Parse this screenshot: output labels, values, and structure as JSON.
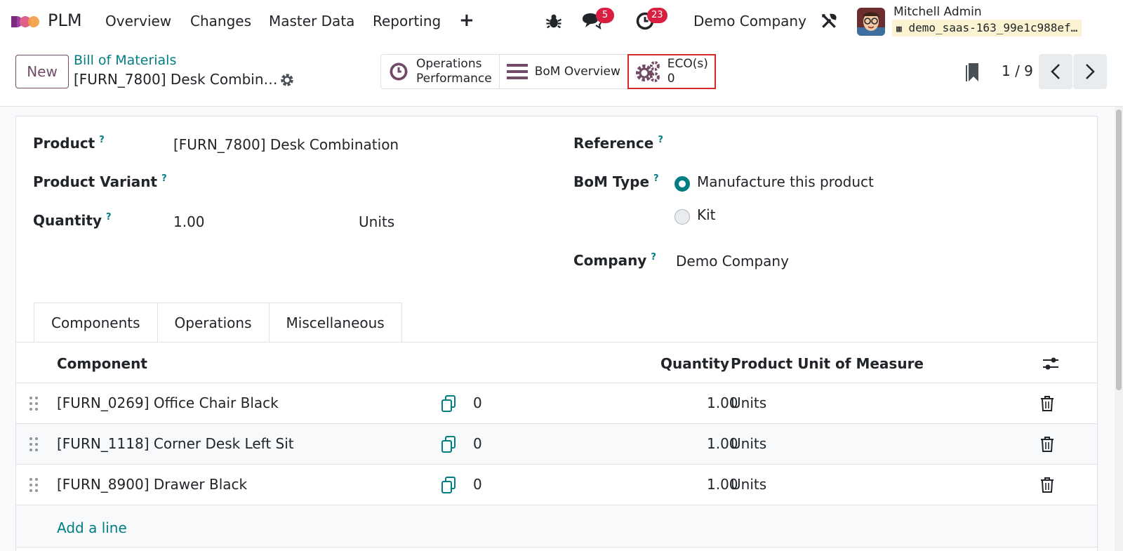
{
  "nav": {
    "app_name": "PLM",
    "menu": [
      "Overview",
      "Changes",
      "Master Data",
      "Reporting"
    ],
    "plus": "+",
    "messages_badge": "5",
    "activities_badge": "23",
    "company": "Demo Company",
    "user_name": "Mitchell Admin",
    "database": "demo_saas-163_99e1c988ef…"
  },
  "control": {
    "new_label": "New",
    "breadcrumb": "Bill of Materials",
    "record_title": "[FURN_7800] Desk Combin…",
    "smart_buttons": {
      "ops_line1": "Operations",
      "ops_line2": "Performance",
      "bom_overview": "BoM Overview",
      "eco_label": "ECO(s)",
      "eco_count": "0"
    },
    "pager": "1 / 9"
  },
  "form": {
    "product_label": "Product",
    "product_value": "[FURN_7800] Desk Combination",
    "variant_label": "Product Variant",
    "quantity_label": "Quantity",
    "quantity_value": "1.00",
    "quantity_uom": "Units",
    "reference_label": "Reference",
    "bom_type_label": "BoM Type",
    "bom_type_options": [
      "Manufacture this product",
      "Kit"
    ],
    "bom_type_selected": "Manufacture this product",
    "company_label": "Company",
    "company_value": "Demo Company",
    "help_mark": "?"
  },
  "tabs": [
    "Components",
    "Operations",
    "Miscellaneous"
  ],
  "components_table": {
    "headers": {
      "component": "Component",
      "quantity": "Quantity",
      "uom": "Product Unit of Measure"
    },
    "rows": [
      {
        "component": "[FURN_0269] Office Chair Black",
        "count": "0",
        "quantity": "1.00",
        "uom": "Units"
      },
      {
        "component": "[FURN_1118] Corner Desk Left Sit",
        "count": "0",
        "quantity": "1.00",
        "uom": "Units"
      },
      {
        "component": "[FURN_8900] Drawer Black",
        "count": "0",
        "quantity": "1.00",
        "uom": "Units"
      }
    ],
    "add_line": "Add a line"
  },
  "colors": {
    "brand": "#714b67",
    "link": "#017e84",
    "badge": "#d91e42",
    "highlight": "#d42a2a"
  }
}
